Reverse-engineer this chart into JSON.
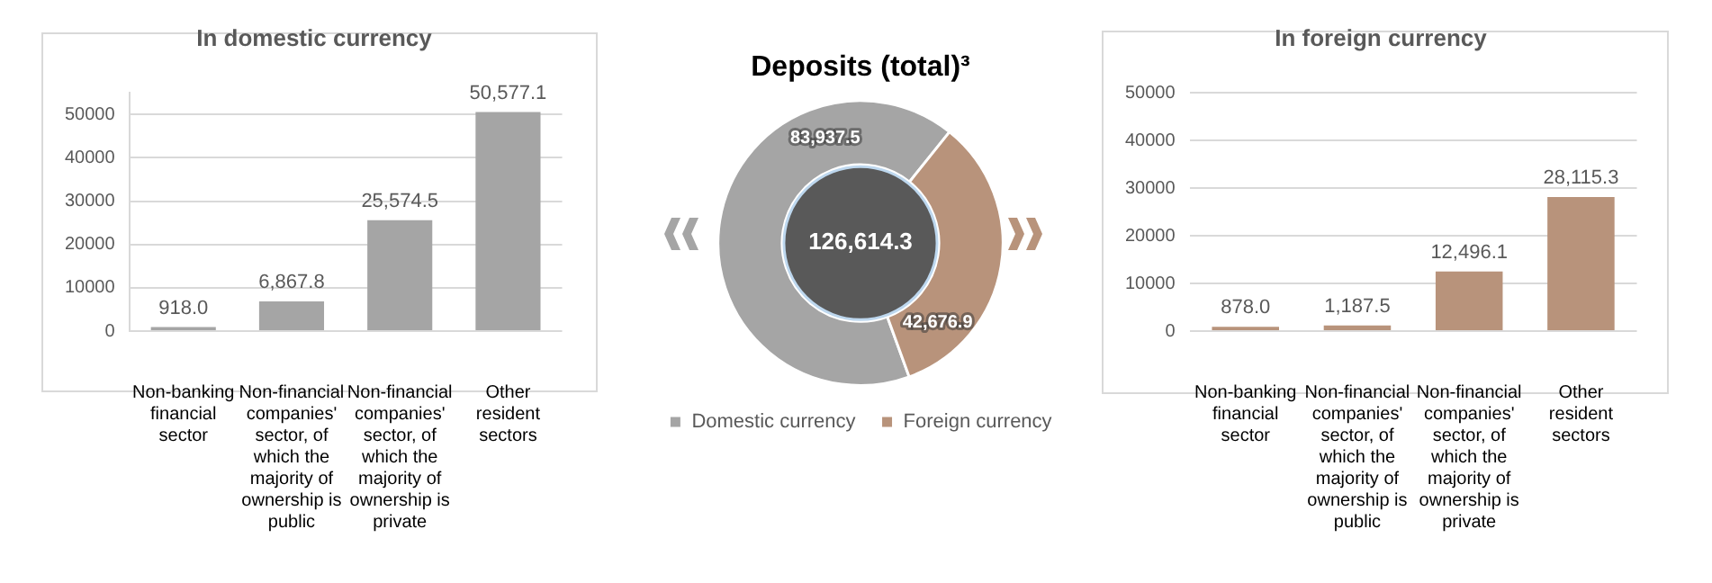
{
  "chart_data": [
    {
      "type": "bar",
      "title": "In domestic currency",
      "categories": [
        "Non-banking financial sector",
        "Non-financial companies' sector, of which the majority of ownership is public",
        "Non-financial companies' sector, of which the majority of ownership is private",
        "Other resident sectors"
      ],
      "values": [
        918.0,
        6867.8,
        25574.5,
        50577.1
      ],
      "color": "#a5a5a5",
      "value_labels": [
        "918.0",
        "6,867.8",
        "25,574.5",
        "50,577.1"
      ],
      "ylim": [
        0,
        55000
      ],
      "yticks": [
        0,
        10000,
        20000,
        30000,
        40000,
        50000
      ],
      "grid": "y",
      "legend": false
    },
    {
      "type": "donut",
      "title": "Deposits (total)³",
      "categories": [
        "Domestic currency",
        "Foreign currency"
      ],
      "values": [
        83937.5,
        42676.9
      ],
      "colors": [
        "#a5a5a5",
        "#b8937b"
      ],
      "value_labels": [
        "83,937.5",
        "42,676.9"
      ],
      "annotations": [
        "126,614.3"
      ],
      "legend": "bottom"
    },
    {
      "type": "bar",
      "title": "In foreign currency",
      "categories": [
        "Non-banking financial sector",
        "Non-financial companies' sector, of which the majority of ownership is public",
        "Non-financial companies' sector, of which the majority of ownership is private",
        "Other resident sectors"
      ],
      "values": [
        878.0,
        1187.5,
        12496.1,
        28115.3
      ],
      "color": "#b8937b",
      "value_labels": [
        "878.0",
        "1,187.5",
        "12,496.1",
        "28,115.3"
      ],
      "ylim": [
        0,
        50000
      ],
      "yticks": [
        0,
        10000,
        20000,
        30000,
        40000,
        50000
      ],
      "grid": "y",
      "legend": false
    }
  ]
}
